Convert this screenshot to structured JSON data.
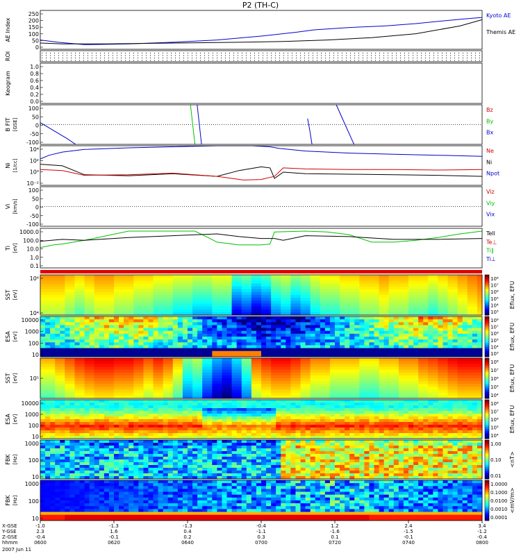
{
  "page_title": "P2 (TH-C)",
  "date_label": "2007 Jun 11",
  "colors": {
    "kyoto": "#0000d0",
    "themis": "#000000",
    "red": "#d00000",
    "green": "#00c000",
    "blue": "#0000c8",
    "black": "#000000"
  },
  "chart_data": [
    {
      "id": "ae",
      "type": "line",
      "ylabel": "AE Index",
      "ylim": [
        0,
        250
      ],
      "ticks": [
        "250",
        "200",
        "150",
        "100",
        "50",
        "0"
      ],
      "legend": [
        {
          "text": "Kyoto AE",
          "color": "#0000d0"
        },
        {
          "text": "Themis AE",
          "color": "#000000"
        }
      ],
      "series": [
        {
          "name": "Kyoto AE",
          "color": "#0000d0",
          "x": [
            0,
            0.04,
            0.1,
            0.2,
            0.3,
            0.4,
            0.5,
            0.58,
            0.62,
            0.7,
            0.78,
            0.85,
            0.92,
            0.96,
            1.0
          ],
          "y": [
            60,
            45,
            30,
            35,
            45,
            60,
            85,
            110,
            125,
            140,
            150,
            165,
            185,
            195,
            205
          ]
        },
        {
          "name": "Themis AE",
          "color": "#000000",
          "x": [
            0,
            0.05,
            0.15,
            0.3,
            0.45,
            0.55,
            0.65,
            0.75,
            0.85,
            0.95,
            1.0
          ],
          "y": [
            40,
            35,
            35,
            40,
            45,
            50,
            60,
            75,
            100,
            150,
            190
          ]
        }
      ]
    },
    {
      "id": "roi",
      "type": "dotted",
      "ylabel": "ROI"
    },
    {
      "id": "keogram",
      "type": "line",
      "ylabel": "Keogram",
      "ylim": [
        0,
        1
      ],
      "ticks": [
        "1.0",
        "0.8",
        "0.6",
        "0.4",
        "0.2",
        "0.0"
      ]
    },
    {
      "id": "bfit",
      "type": "line",
      "ylabel": "B FIT",
      "units": "GSE",
      "ylim": [
        -100,
        100
      ],
      "ticks": [
        "100",
        "50",
        "0",
        "-50",
        "-100"
      ],
      "legend": [
        {
          "text": "Bz",
          "color": "#d00000"
        },
        {
          "text": "By",
          "color": "#00c000"
        },
        {
          "text": "Bx",
          "color": "#0000c8"
        }
      ],
      "series": [
        {
          "name": "Bx",
          "color": "#0000c8",
          "x": [
            0,
            0.03,
            0.06,
            0.08
          ],
          "y": [
            10,
            -30,
            -70,
            -100
          ]
        },
        {
          "name": "By",
          "color": "#00c000",
          "x": [
            0.34,
            0.345,
            0.35
          ],
          "y": [
            100,
            0,
            -100
          ]
        },
        {
          "name": "Bx",
          "color": "#0000c8",
          "x": [
            0.355,
            0.36,
            0.365
          ],
          "y": [
            100,
            0,
            -100
          ]
        },
        {
          "name": "Bx",
          "color": "#0000c8",
          "x": [
            0.605,
            0.61,
            0.615
          ],
          "y": [
            30,
            -30,
            -100
          ]
        },
        {
          "name": "Bx",
          "color": "#0000c8",
          "x": [
            0.67,
            0.69,
            0.71
          ],
          "y": [
            100,
            0,
            -100
          ]
        }
      ]
    },
    {
      "id": "ni",
      "type": "line",
      "ylabel": "Ni",
      "units": "1/cc",
      "scale": "log",
      "ylim": [
        -2.5,
        5
      ],
      "ticks": [
        "10⁴",
        "10²",
        "10⁰",
        "10⁻²"
      ],
      "legend": [
        {
          "text": "Ne",
          "color": "#d00000"
        },
        {
          "text": "Ni",
          "color": "#000000"
        },
        {
          "text": "Npot",
          "color": "#0000c8"
        }
      ],
      "series": [
        {
          "name": "Npot",
          "color": "#0000c8",
          "x": [
            0,
            0.02,
            0.05,
            0.1,
            0.2,
            0.3,
            0.4,
            0.45,
            0.48,
            0.52,
            0.54,
            0.6,
            0.7,
            0.8,
            0.9,
            1.0
          ],
          "y": [
            2.5,
            3.2,
            3.8,
            4.3,
            4.6,
            4.8,
            5,
            5,
            5,
            4.8,
            4.5,
            4.0,
            3.6,
            3.4,
            3.2,
            3.0
          ]
        },
        {
          "name": "Ni",
          "color": "#000000",
          "x": [
            0,
            0.05,
            0.1,
            0.2,
            0.3,
            0.4,
            0.45,
            0.5,
            0.52,
            0.53,
            0.55,
            0.6,
            0.7,
            0.8,
            0.9,
            1.0
          ],
          "y": [
            1.5,
            1.2,
            -0.5,
            -0.7,
            -0.3,
            -0.8,
            0.3,
            1,
            0.8,
            -1.2,
            0.0,
            -0.3,
            -0.4,
            -0.5,
            -0.6,
            -0.8
          ]
        },
        {
          "name": "Ne",
          "color": "#d00000",
          "x": [
            0,
            0.05,
            0.1,
            0.2,
            0.3,
            0.4,
            0.46,
            0.5,
            0.53,
            0.55,
            0.6,
            0.7,
            0.8,
            0.9,
            1.0
          ],
          "y": [
            0.5,
            0.3,
            -0.6,
            -0.5,
            -0.2,
            -0.8,
            -1.5,
            -1.4,
            -0.8,
            0.8,
            0.6,
            0.5,
            0.5,
            0.4,
            0.5
          ]
        }
      ]
    },
    {
      "id": "vi",
      "type": "line",
      "ylabel": "Vi",
      "units": "km/s",
      "ylim": [
        -120,
        120
      ],
      "ticks": [
        "100",
        "50",
        "0",
        "-50",
        "-100"
      ],
      "legend": [
        {
          "text": "Viz",
          "color": "#d00000"
        },
        {
          "text": "Viy",
          "color": "#00c000"
        },
        {
          "text": "Vix",
          "color": "#0000c8"
        }
      ]
    },
    {
      "id": "ti",
      "type": "line",
      "ylabel": "Ti",
      "units": "eV",
      "scale": "log",
      "ylim": [
        -1,
        3.3
      ],
      "ticks": [
        "1000.0",
        "100.0",
        "10.0",
        "1.0",
        "0.1"
      ],
      "legend": [
        {
          "text": "Tell",
          "color": "#000000"
        },
        {
          "text": "Te⊥",
          "color": "#d00000"
        },
        {
          "text": "Ti∥",
          "color": "#00c000"
        },
        {
          "text": "Ti⊥",
          "color": "#0000c8"
        }
      ],
      "series": [
        {
          "name": "Ti∥",
          "color": "#00c000",
          "x": [
            0,
            0.03,
            0.05,
            0.1,
            0.15,
            0.2,
            0.3,
            0.35,
            0.38,
            0.4,
            0.45,
            0.5,
            0.52,
            0.53,
            0.6,
            0.65,
            0.7,
            0.75,
            0.8,
            0.85,
            0.9,
            0.95,
            1.0
          ],
          "y": [
            1.2,
            1.5,
            1.6,
            2.0,
            2.5,
            3.0,
            3.0,
            3.0,
            2.3,
            1.8,
            1.5,
            1.5,
            1.6,
            2.9,
            3.0,
            2.9,
            2.6,
            1.8,
            1.8,
            2.0,
            2.3,
            2.7,
            3.0
          ]
        },
        {
          "name": "Tell",
          "color": "#000000",
          "x": [
            0,
            0.05,
            0.1,
            0.2,
            0.3,
            0.4,
            0.45,
            0.5,
            0.53,
            0.55,
            0.6,
            0.7,
            0.8,
            0.9,
            1.0
          ],
          "y": [
            1.9,
            2.1,
            2.0,
            2.3,
            2.5,
            2.7,
            2.4,
            2.2,
            2.2,
            2.0,
            2.5,
            2.4,
            2.1,
            2.1,
            2.2
          ]
        }
      ]
    },
    {
      "id": "sst_i",
      "type": "heatmap",
      "ylabel": "SST",
      "units": "eV",
      "ticks": [
        "10⁶",
        "10⁴"
      ],
      "cbar_label": "Eflux, EFU",
      "cbar_ticks": [
        "10⁸",
        "10⁷",
        "10⁶",
        "10⁵",
        "10⁴",
        "10³"
      ],
      "columns": [
        0.45,
        0.45,
        0.5,
        0.55,
        0.5,
        0.45,
        0.45,
        0.5,
        0.5,
        0.55,
        0.55,
        0.6,
        0.6,
        0.65,
        0.65,
        0.7,
        0.7,
        0.65,
        0.65,
        0.9,
        0.85,
        0.95,
        0.9,
        0.75,
        0.7,
        0.8,
        0.75,
        0.65,
        0.6,
        0.6,
        0.55,
        0.55,
        0.5,
        0.5,
        0.45,
        0.5,
        0.5,
        0.55,
        0.55,
        0.6,
        0.55,
        0.5,
        0.45,
        0.4,
        0.35
      ]
    },
    {
      "id": "esa_i",
      "type": "heatmap",
      "ylabel": "ESA",
      "units": "eV",
      "ticks": [
        "10000",
        "1000",
        "100",
        "10"
      ],
      "cbar_label": "Eflux, EFU",
      "cbar_ticks": [
        "10⁸",
        "10⁷",
        "10⁶",
        "10⁵",
        "10⁴",
        "10³"
      ]
    },
    {
      "id": "sst_e",
      "type": "heatmap",
      "ylabel": "SST",
      "units": "eV",
      "ticks": [
        "10⁵"
      ],
      "cbar_label": "Eflux, EFU",
      "cbar_ticks": [
        "10⁸",
        "10⁷",
        "10⁶",
        "10⁵",
        "10⁴"
      ],
      "columns": [
        0.3,
        0.25,
        0.2,
        0.15,
        0.12,
        0.1,
        0.1,
        0.12,
        0.12,
        0.15,
        0.2,
        0.15,
        0.2,
        0.3,
        0.5,
        0.45,
        0.6,
        0.7,
        0.75,
        0.65,
        0.5,
        0.2,
        0.15,
        0.12,
        0.12,
        0.15,
        0.2,
        0.25,
        0.25,
        0.3,
        0.3,
        0.3,
        0.35,
        0.35,
        0.3,
        0.3,
        0.25,
        0.25,
        0.2,
        0.18,
        0.15,
        0.12,
        0.1,
        0.1,
        0.1
      ]
    },
    {
      "id": "esa_e",
      "type": "heatmap",
      "ylabel": "ESA",
      "units": "eV",
      "ticks": [
        "10000",
        "1000",
        "100",
        "10"
      ],
      "cbar_label": "Eflux, EFU",
      "cbar_ticks": [
        "10⁸",
        "10⁷",
        "10⁶",
        "10⁵",
        "10⁴"
      ]
    },
    {
      "id": "fbk_b",
      "type": "heatmap",
      "ylabel": "FBK",
      "units": "Hz",
      "ticks": [
        "1000",
        "100",
        "10"
      ],
      "cbar_label": "<nT>",
      "cbar_ticks": [
        "1.00",
        "0.10",
        "0.01"
      ]
    },
    {
      "id": "fbk_e",
      "type": "heatmap",
      "ylabel": "FBK",
      "units": "Hz",
      "ticks": [
        "1000",
        "100",
        "10"
      ],
      "cbar_label": "<mV/m>",
      "cbar_ticks": [
        "1.0000",
        "0.1000",
        "0.0100",
        "0.0010",
        "0.0001"
      ]
    }
  ],
  "xaxis": {
    "row_labels": [
      "X-GSE",
      "Y-GSE",
      "Z-GSE",
      "hhmm"
    ],
    "columns": [
      {
        "x": [
          "-1.0",
          "2.3",
          "-0.4",
          "0600"
        ]
      },
      {
        "x": [
          "-1.3",
          "1.6",
          "-0.1",
          "0620"
        ]
      },
      {
        "x": [
          "-1.3",
          "0.4",
          "0.2",
          "0640"
        ]
      },
      {
        "x": [
          "-0.4",
          "-1.1",
          "0.3",
          "0700"
        ]
      },
      {
        "x": [
          "1.2",
          "-1.6",
          "0.1",
          "0720"
        ]
      },
      {
        "x": [
          "2.4",
          "-1.5",
          "-0.1",
          "0740"
        ]
      },
      {
        "x": [
          "3.4",
          "-1.2",
          "-0.4",
          "0800"
        ]
      }
    ]
  }
}
